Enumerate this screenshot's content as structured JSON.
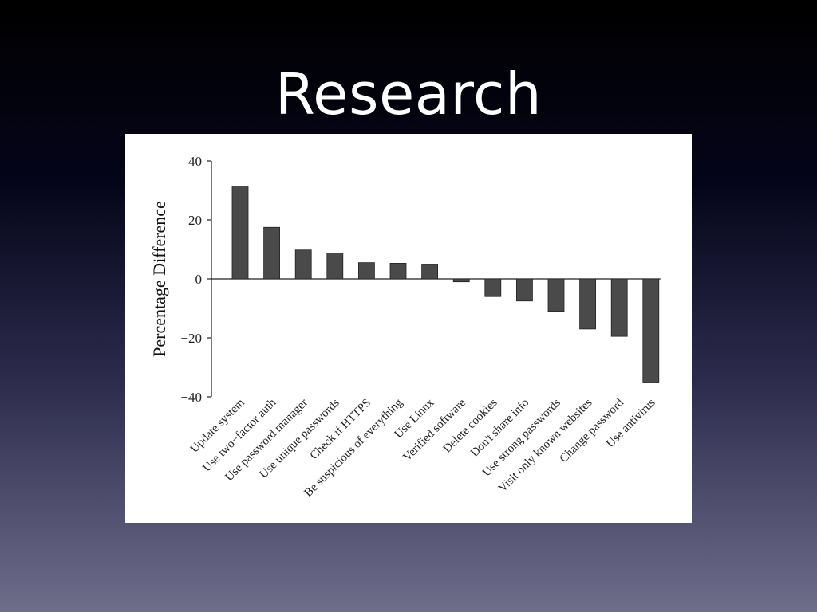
{
  "slide": {
    "title": "Research"
  },
  "chart_data": {
    "type": "bar",
    "ylabel": "Percentage Difference",
    "xlabel": "",
    "ylim": [
      -40,
      40
    ],
    "yticks": [
      40,
      20,
      0,
      -20,
      -40
    ],
    "ytick_labels": [
      "40",
      "20",
      "0",
      "−20",
      "−40"
    ],
    "grid": false,
    "bar_color": "#4a4a4a",
    "categories": [
      "Update system",
      "Use two−factor auth",
      "Use password manager",
      "Use unique passwords",
      "Check if HTTPS",
      "Be suspicious of everything",
      "Use Linux",
      "Verified software",
      "Delete cookies",
      "Don't share info",
      "Use strong passwords",
      "Visit only known websites",
      "Change password",
      "Use antivirus"
    ],
    "values": [
      31.5,
      17.5,
      9.8,
      8.8,
      5.5,
      5.3,
      5.0,
      -1.0,
      -6.0,
      -7.5,
      -11.0,
      -17.0,
      -19.5,
      -35.0
    ]
  }
}
